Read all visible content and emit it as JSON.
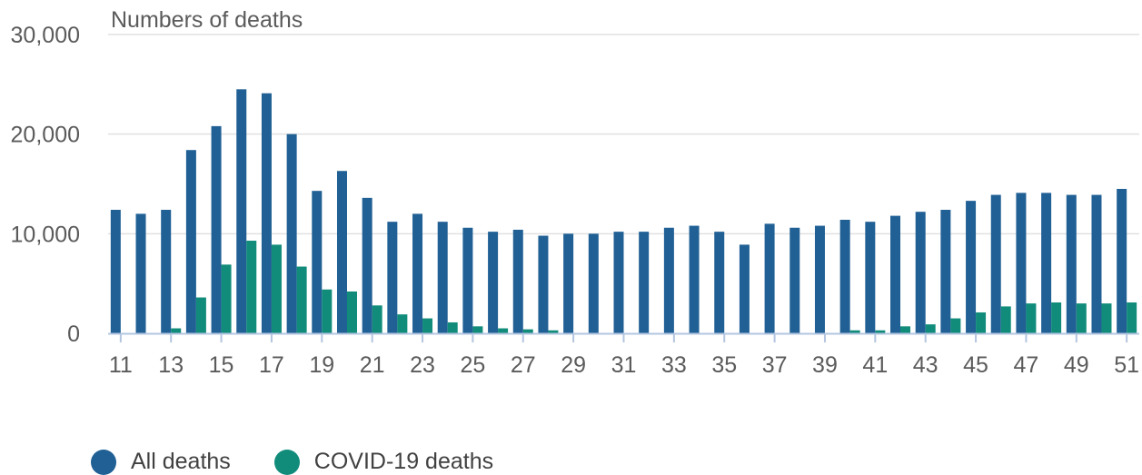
{
  "chart_data": {
    "type": "bar",
    "ylabel": "Numbers of deaths",
    "ylim": [
      0,
      30000
    ],
    "yticks": [
      0,
      10000,
      20000,
      30000
    ],
    "ytick_labels": [
      "0",
      "10,000",
      "20,000",
      "30,000"
    ],
    "categories": [
      "11",
      "12",
      "13",
      "14",
      "15",
      "16",
      "17",
      "18",
      "19",
      "20",
      "21",
      "22",
      "23",
      "24",
      "25",
      "26",
      "27",
      "28",
      "29",
      "30",
      "31",
      "32",
      "33",
      "34",
      "35",
      "36",
      "37",
      "38",
      "39",
      "40",
      "41",
      "42",
      "43",
      "44",
      "45",
      "46",
      "47",
      "48",
      "49",
      "50",
      "51"
    ],
    "xtick_labels": [
      "11",
      "13",
      "15",
      "17",
      "19",
      "21",
      "23",
      "25",
      "27",
      "29",
      "31",
      "33",
      "35",
      "37",
      "39",
      "41",
      "43",
      "45",
      "47",
      "49",
      "51"
    ],
    "series": [
      {
        "name": "All deaths",
        "color": "#206095",
        "values": [
          12400,
          12000,
          12400,
          18400,
          20800,
          24500,
          24100,
          20000,
          14300,
          16300,
          13600,
          11200,
          12000,
          11200,
          10600,
          10200,
          10400,
          9800,
          10000,
          10000,
          10200,
          10200,
          10600,
          10800,
          10200,
          8900,
          11000,
          10600,
          10800,
          11400,
          11200,
          11800,
          12200,
          12400,
          13300,
          13900,
          14100,
          14100,
          13900,
          13900,
          14500
        ]
      },
      {
        "name": "COVID-19 deaths",
        "color": "#118c7b",
        "values": [
          0,
          0,
          500,
          3600,
          6900,
          9300,
          8900,
          6700,
          4400,
          4200,
          2800,
          1900,
          1500,
          1100,
          700,
          500,
          400,
          300,
          0,
          0,
          0,
          0,
          0,
          0,
          0,
          0,
          0,
          0,
          0,
          300,
          300,
          700,
          900,
          1500,
          2100,
          2700,
          3000,
          3100,
          3000,
          3000,
          3100
        ]
      }
    ],
    "grid": true,
    "legend": "bottom-left"
  }
}
